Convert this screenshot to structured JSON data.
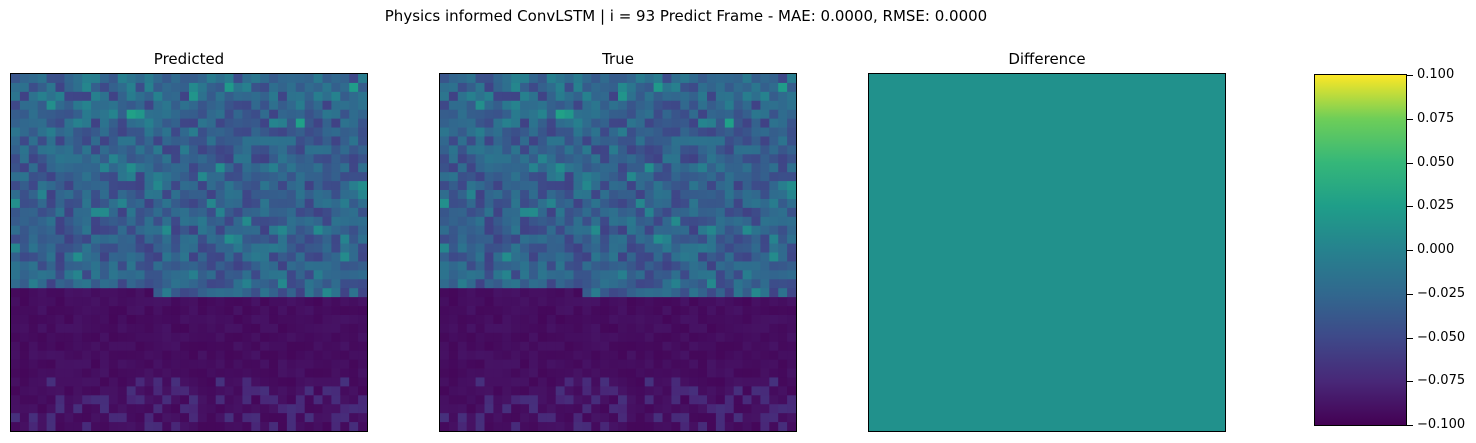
{
  "figure": {
    "suptitle": "Physics informed ConvLSTM | i = 93 Predict Frame - MAE: 0.0000, RMSE: 0.0000"
  },
  "chart_data": [
    {
      "type": "heatmap",
      "title": "Predicted",
      "grid_size": [
        40,
        40
      ],
      "axes_ticks": "none",
      "colormap": "viridis",
      "description_of_field": "upper ~60% of rows show medium values (speckled blue-teal), lower ~40% near minimum with faint sparse speckle near bottom"
    },
    {
      "type": "heatmap",
      "title": "True",
      "grid_size": [
        40,
        40
      ],
      "axes_ticks": "none",
      "colormap": "viridis",
      "identical_to": "Predicted"
    },
    {
      "type": "heatmap",
      "title": "Difference",
      "grid_size": [
        40,
        40
      ],
      "axes_ticks": "none",
      "colormap": "viridis",
      "uniform_value": 0.0,
      "uniform_color": "#21918c"
    }
  ],
  "colorbar": {
    "colormap": "viridis",
    "vmin": -0.1,
    "vmax": 0.1,
    "ticks": [
      "0.100",
      "0.075",
      "0.050",
      "0.025",
      "0.000",
      "−0.025",
      "−0.050",
      "−0.075",
      "−0.100"
    ]
  },
  "colors": {
    "viridis_low": "#440154",
    "viridis_mid": "#21918c",
    "viridis_high": "#fde725"
  }
}
